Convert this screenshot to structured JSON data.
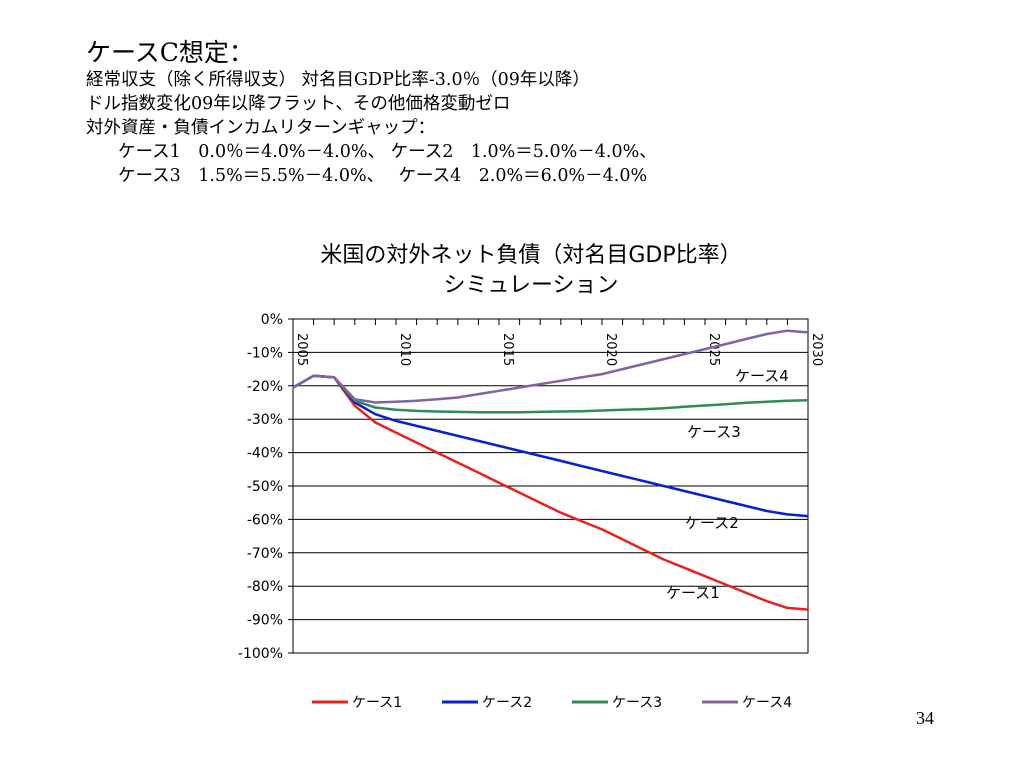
{
  "slide": {
    "title": "ケースC想定：",
    "lines": [
      "経常収支（除く所得収支） 対名目GDP比率-3.0％（09年以降）",
      "ドル指数変化09年以降フラット、その他価格変動ゼロ",
      "対外資産・負債インカムリターンギャップ：",
      "ケース1　0.0％＝4.0%－4.0%、 ケース2　1.0%＝5.0%－4.0%、",
      "ケース3　1.5%＝5.5%－4.0%、　 ケース4　2.0%＝6.0%－4.0%"
    ],
    "page_number": "34"
  },
  "chart_data": {
    "type": "line",
    "title": "米国の対外ネット負債（対名目GDP比率）",
    "subtitle": "シミュレーション",
    "xlabel": "",
    "ylabel": "",
    "x": [
      2005,
      2006,
      2007,
      2008,
      2009,
      2010,
      2011,
      2012,
      2013,
      2014,
      2015,
      2016,
      2017,
      2018,
      2019,
      2020,
      2021,
      2022,
      2023,
      2024,
      2025,
      2026,
      2027,
      2028,
      2029,
      2030
    ],
    "xlim": [
      2005,
      2030
    ],
    "ylim": [
      -100,
      0
    ],
    "x_ticks": [
      2005,
      2010,
      2015,
      2020,
      2025,
      2030
    ],
    "y_ticks": [
      0,
      -10,
      -20,
      -30,
      -40,
      -50,
      -60,
      -70,
      -80,
      -90,
      -100
    ],
    "y_tick_labels": [
      "0%",
      "-10%",
      "-20%",
      "-30%",
      "-40%",
      "-50%",
      "-60%",
      "-70%",
      "-80%",
      "-90%",
      "-100%"
    ],
    "x_axis_position": "top",
    "grid": "horizontal",
    "legend_position": "bottom",
    "series": [
      {
        "name": "ケース1",
        "color": "#e8221b",
        "inline_label": "ケース1",
        "values": [
          -20.5,
          -17,
          -17.5,
          -26,
          -31,
          -34,
          -37,
          -40,
          -43,
          -46,
          -49,
          -52,
          -55,
          -58,
          -60.5,
          -63,
          -66,
          -69,
          -72,
          -74.5,
          -77,
          -79.5,
          -82,
          -84.5,
          -86.5,
          -87
        ]
      },
      {
        "name": "ケース2",
        "color": "#0a1ed6",
        "inline_label": "ケース2",
        "values": [
          -20.5,
          -17,
          -17.5,
          -25,
          -28.5,
          -30.5,
          -32,
          -33.5,
          -35,
          -36.5,
          -38,
          -39.5,
          -41,
          -42.5,
          -44,
          -45.5,
          -47,
          -48.5,
          -50,
          -51.5,
          -53,
          -54.5,
          -56,
          -57.5,
          -58.5,
          -59
        ]
      },
      {
        "name": "ケース3",
        "color": "#2e8b57",
        "inline_label": "ケース3",
        "values": [
          -20.5,
          -17,
          -17.5,
          -24.5,
          -26.5,
          -27.2,
          -27.5,
          -27.7,
          -27.8,
          -27.9,
          -27.9,
          -27.9,
          -27.8,
          -27.7,
          -27.6,
          -27.4,
          -27.2,
          -27,
          -26.7,
          -26.3,
          -25.9,
          -25.5,
          -25.1,
          -24.8,
          -24.5,
          -24.3
        ]
      },
      {
        "name": "ケース4",
        "color": "#8064a2",
        "inline_label": "ケース4",
        "values": [
          -20.5,
          -17,
          -17.5,
          -24,
          -25,
          -24.8,
          -24.5,
          -24,
          -23.5,
          -22.5,
          -21.5,
          -20.5,
          -19.5,
          -18.5,
          -17.5,
          -16.5,
          -15,
          -13.5,
          -12,
          -10.5,
          -9,
          -7.5,
          -6,
          -4.5,
          -3.5,
          -4
        ]
      }
    ]
  }
}
